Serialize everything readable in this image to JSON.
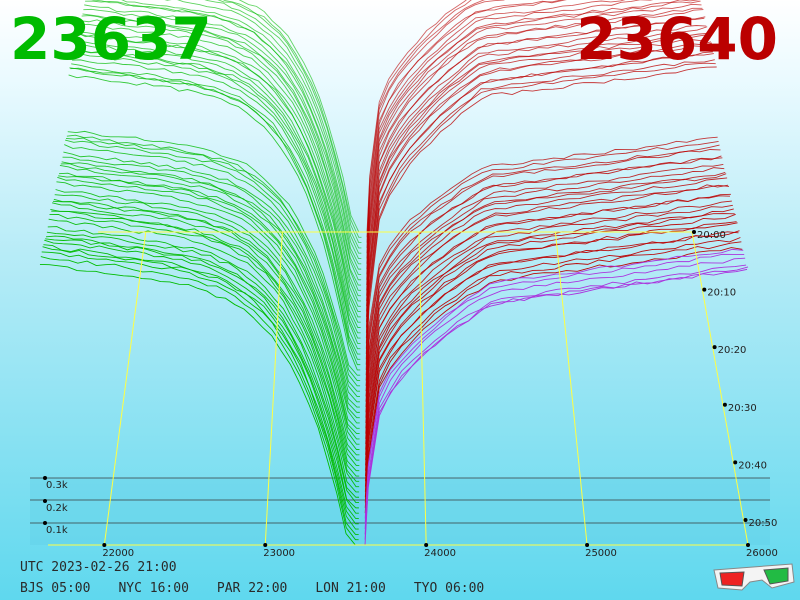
{
  "prices": {
    "bid": "23637",
    "ask": "23640",
    "bid_color": "#00bb00",
    "ask_color": "#bb0000"
  },
  "chart_data": {
    "type": "area",
    "title": "",
    "x_axis": {
      "ticks": [
        "22000",
        "23000",
        "24000",
        "25000",
        "26000"
      ]
    },
    "volume_axis": {
      "ticks": [
        "0.1k",
        "0.2k",
        "0.3k"
      ]
    },
    "time_axis": {
      "ticks": [
        "20:00",
        "20:10",
        "20:20",
        "20:30",
        "20:40",
        "20:50"
      ]
    },
    "series": [
      {
        "side": "bid",
        "color": "#00bb00",
        "price_range": [
          21200,
          23560
        ]
      },
      {
        "side": "ask",
        "color": "#bb0000",
        "price_range": [
          23640,
          26000
        ]
      }
    ],
    "snapshots": 60,
    "grid_color": "#ffff44"
  },
  "footer": {
    "utc": "UTC 2023-02-26 21:00",
    "zones": [
      "BJS 05:00",
      "NYC 16:00",
      "PAR 22:00",
      "LON 21:00",
      "TYO 06:00"
    ]
  },
  "icon": "3d-glasses-icon"
}
